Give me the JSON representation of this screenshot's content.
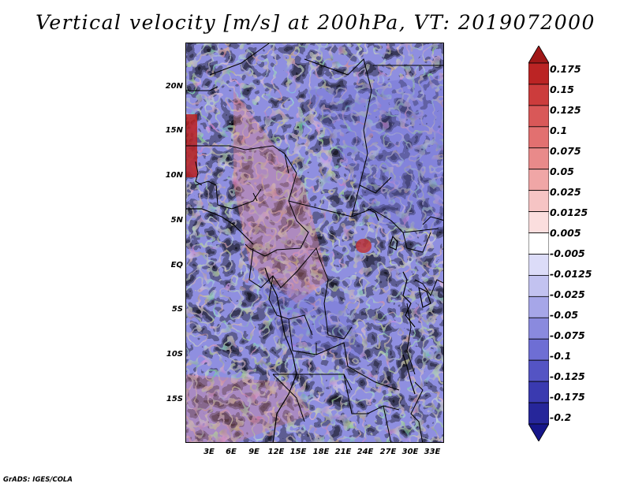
{
  "title": "Vertical velocity [m/s] at 200hPa, VT: 2019072000",
  "map": {
    "lat_labels": [
      "20N",
      "15N",
      "10N",
      "5N",
      "EQ",
      "5S",
      "10S",
      "15S"
    ],
    "lon_labels": [
      "3E",
      "6E",
      "9E",
      "12E",
      "15E",
      "18E",
      "21E",
      "24E",
      "27E",
      "30E",
      "33E"
    ]
  },
  "colorbar": {
    "labels": [
      "0.175",
      "0.15",
      "0.125",
      "0.1",
      "0.075",
      "0.05",
      "0.025",
      "0.0125",
      "0.005",
      "-0.005",
      "-0.0125",
      "-0.025",
      "-0.05",
      "-0.075",
      "-0.1",
      "-0.125",
      "-0.175",
      "-0.2"
    ],
    "colors": [
      "#a01818",
      "#bb2424",
      "#cc3c3c",
      "#d95858",
      "#e27070",
      "#e98a8a",
      "#f0a6a6",
      "#f6c4c4",
      "#fbdede",
      "#ffffff",
      "#dcdcf8",
      "#c2c2f0",
      "#a6a6e8",
      "#8a8ade",
      "#6e6ed4",
      "#5454c4",
      "#3a3ab0",
      "#26269a",
      "#16168a"
    ]
  },
  "footer": "GrADS: IGES/COLA"
}
